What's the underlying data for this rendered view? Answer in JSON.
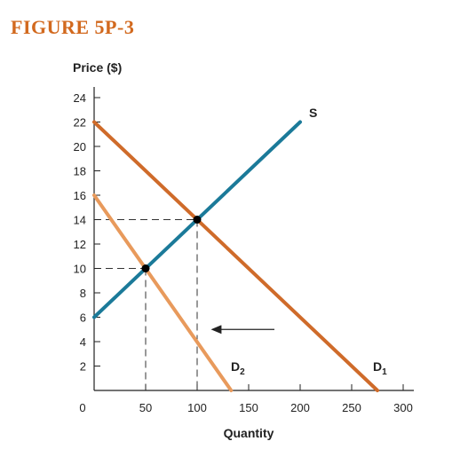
{
  "figure_title": "FIGURE 5P-3",
  "colors": {
    "title": "#d2691e",
    "supply": "#1b7a99",
    "demand1": "#cf6b2a",
    "demand2": "#e89a5c",
    "axis": "#222222",
    "guide": "#333333",
    "point": "#000000"
  },
  "chart_data": {
    "type": "line",
    "xlabel": "Quantity",
    "ylabel": "Price ($)",
    "xlim": [
      0,
      300
    ],
    "ylim": [
      0,
      24
    ],
    "x_ticks": [
      0,
      50,
      100,
      150,
      200,
      250,
      300
    ],
    "y_ticks": [
      2,
      4,
      6,
      8,
      10,
      12,
      14,
      16,
      18,
      20,
      22,
      24
    ],
    "origin_label": "0",
    "grid": false,
    "series": [
      {
        "name": "S",
        "label": "S",
        "color_key": "supply",
        "x": [
          0,
          200
        ],
        "y": [
          6,
          22
        ]
      },
      {
        "name": "D1",
        "label": "D",
        "subscript": "1",
        "color_key": "demand1",
        "x": [
          0,
          275
        ],
        "y": [
          22,
          0
        ]
      },
      {
        "name": "D2",
        "label": "D",
        "subscript": "2",
        "color_key": "demand2",
        "x": [
          0,
          133
        ],
        "y": [
          16,
          0
        ]
      }
    ],
    "equilibria": [
      {
        "x": 100,
        "y": 14
      },
      {
        "x": 50,
        "y": 10
      }
    ],
    "arrow": {
      "from": [
        175,
        5
      ],
      "to": [
        115,
        5
      ],
      "direction": "left"
    }
  }
}
